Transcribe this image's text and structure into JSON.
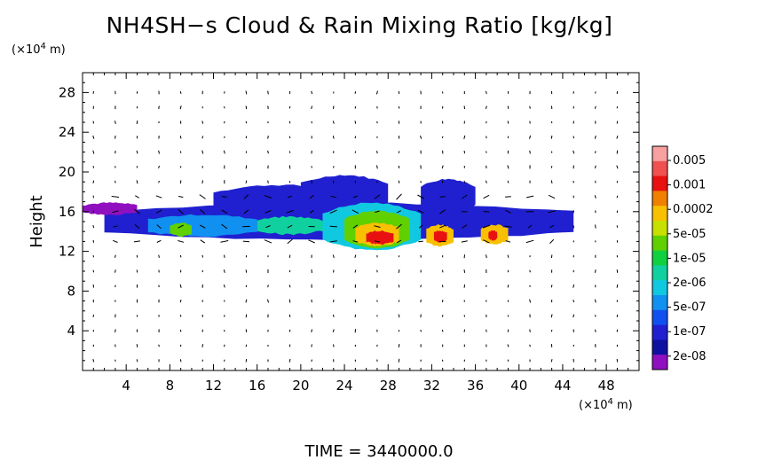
{
  "chart_data": {
    "type": "heatmap",
    "title": "NH4SH−s Cloud & Rain Mixing Ratio [kg/kg]",
    "ylabel": "Height",
    "y_unit": "(×10",
    "y_unit_exp": "4",
    "y_unit_tail": " m)",
    "x_unit": "(×10",
    "x_unit_exp": "4",
    "x_unit_tail": " m)",
    "xlim": [
      0,
      51
    ],
    "ylim": [
      0,
      30
    ],
    "x_ticks": [
      "4",
      "8",
      "12",
      "16",
      "20",
      "24",
      "28",
      "32",
      "36",
      "40",
      "44",
      "48"
    ],
    "y_ticks": [
      "4",
      "8",
      "12",
      "16",
      "20",
      "24",
      "28"
    ],
    "colorbar_labels": [
      "0.005",
      "0.001",
      "0.0002",
      "5e-05",
      "1e-05",
      "2e-06",
      "5e-07",
      "1e-07",
      "2e-08"
    ],
    "colorbar_colors": [
      "#f7a0a0",
      "#f05050",
      "#e81010",
      "#f08000",
      "#f8c000",
      "#c8e000",
      "#60d000",
      "#10d040",
      "#10d0a0",
      "#10c8e0",
      "#1090f0",
      "#1050f0",
      "#2020d0",
      "#1010a0",
      "#9010c0"
    ],
    "time_label": "TIME = 3440000.0",
    "cloud_regions": [
      {
        "x": [
          2.0,
          45.0
        ],
        "y": [
          13.2,
          16.8
        ],
        "level": 12
      },
      {
        "x": [
          12.0,
          24.0
        ],
        "y": [
          15.5,
          18.6
        ],
        "level": 12
      },
      {
        "x": [
          20.0,
          28.0
        ],
        "y": [
          16.0,
          19.6
        ],
        "level": 12
      },
      {
        "x": [
          31.0,
          36.0
        ],
        "y": [
          16.0,
          19.2
        ],
        "level": 12
      },
      {
        "x": [
          0.0,
          5.0
        ],
        "y": [
          15.8,
          16.8
        ],
        "level": 14
      },
      {
        "x": [
          6.0,
          16.0
        ],
        "y": [
          13.6,
          15.6
        ],
        "level": 10
      },
      {
        "x": [
          22.0,
          31.0
        ],
        "y": [
          12.2,
          16.8
        ],
        "level": 9
      },
      {
        "x": [
          24.0,
          30.0
        ],
        "y": [
          12.4,
          16.0
        ],
        "level": 6
      },
      {
        "x": [
          25.0,
          29.0
        ],
        "y": [
          12.6,
          14.8
        ],
        "level": 4
      },
      {
        "x": [
          26.0,
          28.5
        ],
        "y": [
          12.8,
          14.0
        ],
        "level": 2
      },
      {
        "x": [
          31.5,
          34.0
        ],
        "y": [
          12.6,
          14.6
        ],
        "level": 4
      },
      {
        "x": [
          32.2,
          33.4
        ],
        "y": [
          13.0,
          14.0
        ],
        "level": 2
      },
      {
        "x": [
          36.5,
          39.0
        ],
        "y": [
          12.8,
          14.6
        ],
        "level": 4
      },
      {
        "x": [
          37.2,
          38.0
        ],
        "y": [
          13.2,
          14.0
        ],
        "level": 2
      },
      {
        "x": [
          8.0,
          10.0
        ],
        "y": [
          13.6,
          14.8
        ],
        "level": 6
      },
      {
        "x": [
          16.0,
          22.0
        ],
        "y": [
          13.8,
          15.4
        ],
        "level": 8
      }
    ]
  }
}
